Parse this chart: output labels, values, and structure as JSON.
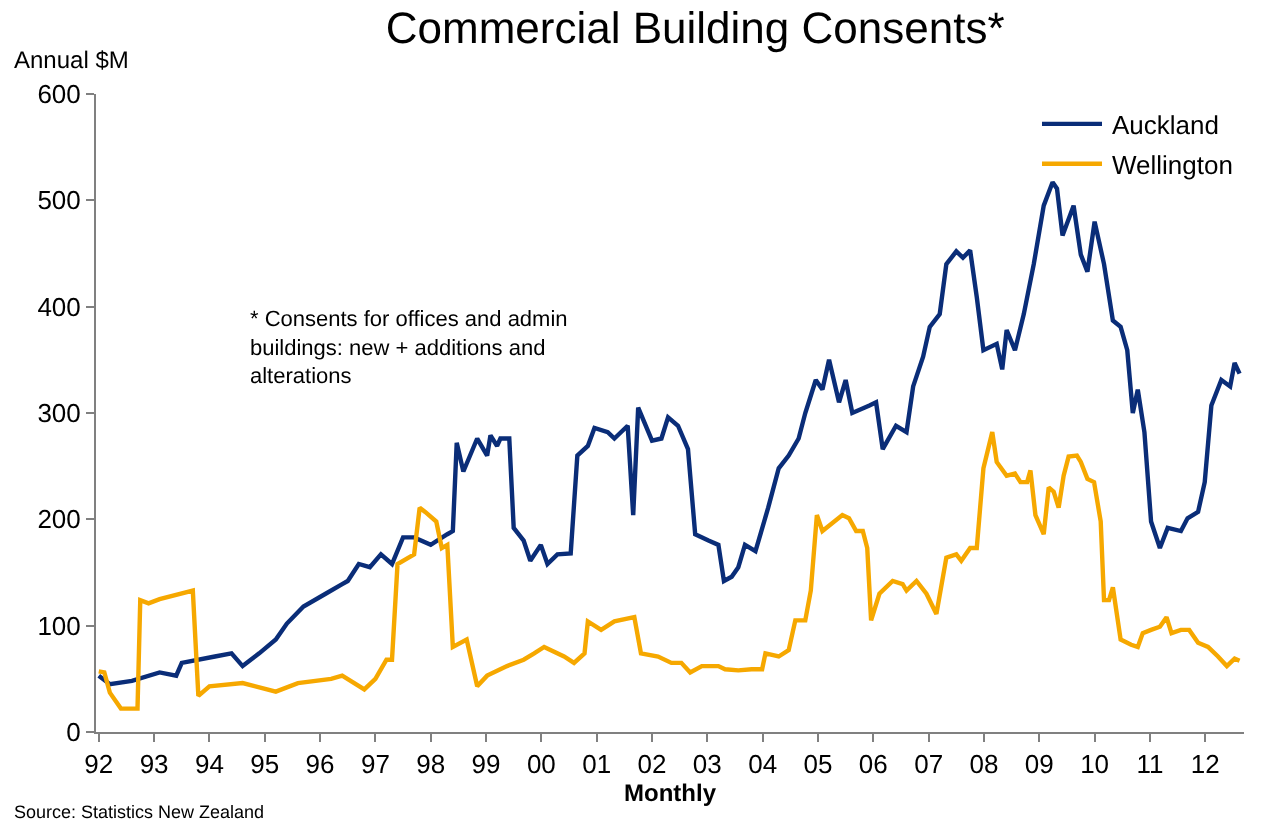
{
  "chart_data": {
    "type": "line",
    "title": "Commercial Building Consents*",
    "ylabel": "Annual $M",
    "xlabel": "Monthly",
    "annotations": [
      "* Consents for offices and admin\nbuildings: new + additions and\nalterations",
      "Source: Statistics New Zealand"
    ],
    "xlim": [
      1991.95,
      2012.7
    ],
    "xticks": [
      {
        "value": 1992,
        "label": "92"
      },
      {
        "value": 1993,
        "label": "93"
      },
      {
        "value": 1994,
        "label": "94"
      },
      {
        "value": 1995,
        "label": "95"
      },
      {
        "value": 1996,
        "label": "96"
      },
      {
        "value": 1997,
        "label": "97"
      },
      {
        "value": 1998,
        "label": "98"
      },
      {
        "value": 1999,
        "label": "99"
      },
      {
        "value": 2000,
        "label": "00"
      },
      {
        "value": 2001,
        "label": "01"
      },
      {
        "value": 2002,
        "label": "02"
      },
      {
        "value": 2003,
        "label": "03"
      },
      {
        "value": 2004,
        "label": "04"
      },
      {
        "value": 2005,
        "label": "05"
      },
      {
        "value": 2006,
        "label": "06"
      },
      {
        "value": 2007,
        "label": "07"
      },
      {
        "value": 2008,
        "label": "08"
      },
      {
        "value": 2009,
        "label": "09"
      },
      {
        "value": 2010,
        "label": "10"
      },
      {
        "value": 2011,
        "label": "11"
      },
      {
        "value": 2012,
        "label": "12"
      }
    ],
    "ylim": [
      0,
      600
    ],
    "yticks": [
      0,
      100,
      200,
      300,
      400,
      500,
      600
    ],
    "legend": "top right",
    "marker": "none",
    "line_style": "solid",
    "series": [
      {
        "name": "Auckland",
        "color": "#0a2d78",
        "x": [
          1992.0,
          1992.2,
          1992.6,
          1993.1,
          1993.4,
          1993.5,
          1994.1,
          1994.4,
          1994.6,
          1994.9,
          1995.2,
          1995.4,
          1995.7,
          1996.1,
          1996.4,
          1996.5,
          1996.7,
          1996.9,
          1997.1,
          1997.3,
          1997.5,
          1997.7,
          1998.0,
          1998.3,
          1998.4,
          1998.47,
          1998.59,
          1998.84,
          1999.02,
          1999.08,
          1999.2,
          1999.26,
          1999.42,
          1999.5,
          1999.68,
          1999.8,
          1999.99,
          2000.11,
          2000.29,
          2000.53,
          2000.65,
          2000.84,
          2000.96,
          2001.2,
          2001.32,
          2001.56,
          2001.66,
          2001.75,
          2002.0,
          2002.17,
          2002.29,
          2002.47,
          2002.65,
          2002.78,
          2003.02,
          2003.2,
          2003.3,
          2003.44,
          2003.56,
          2003.68,
          2003.87,
          2004.1,
          2004.29,
          2004.47,
          2004.65,
          2004.77,
          2004.96,
          2005.08,
          2005.2,
          2005.38,
          2005.5,
          2005.62,
          2005.93,
          2006.05,
          2006.17,
          2006.41,
          2006.6,
          2006.72,
          2006.9,
          2007.02,
          2007.2,
          2007.32,
          2007.5,
          2007.62,
          2007.75,
          2007.87,
          2007.99,
          2008.23,
          2008.33,
          2008.41,
          2008.56,
          2008.72,
          2008.9,
          2009.08,
          2009.24,
          2009.32,
          2009.42,
          2009.62,
          2009.75,
          2009.87,
          2010.0,
          2010.17,
          2010.33,
          2010.47,
          2010.59,
          2010.69,
          2010.78,
          2010.9,
          2011.02,
          2011.18,
          2011.32,
          2011.56,
          2011.68,
          2011.87,
          2011.99,
          2012.11,
          2012.29,
          2012.45,
          2012.53,
          2012.62
        ],
        "values": [
          53,
          45,
          48,
          56,
          53,
          65,
          71,
          74,
          62,
          74,
          87,
          102,
          118,
          130,
          139,
          142,
          158,
          155,
          167,
          158,
          183,
          183,
          176,
          186,
          189,
          272,
          245,
          276,
          260,
          279,
          269,
          276,
          276,
          192,
          180,
          161,
          176,
          158,
          167,
          168,
          260,
          269,
          286,
          282,
          276,
          288,
          204,
          305,
          274,
          276,
          296,
          288,
          266,
          186,
          180,
          176,
          142,
          146,
          155,
          176,
          170,
          211,
          248,
          260,
          276,
          300,
          331,
          322,
          350,
          310,
          331,
          300,
          307,
          310,
          266,
          288,
          282,
          325,
          353,
          381,
          393,
          440,
          452,
          446,
          453,
          409,
          359,
          365,
          341,
          378,
          359,
          393,
          440,
          495,
          517,
          511,
          467,
          495,
          449,
          433,
          480,
          440,
          387,
          381,
          359,
          300,
          322,
          282,
          198,
          173,
          192,
          189,
          201,
          207,
          235,
          307,
          331,
          325,
          347,
          337
        ]
      },
      {
        "name": "Wellington",
        "color": "#f6a800",
        "x": [
          1992.0,
          1992.1,
          1992.2,
          1992.4,
          1992.7,
          1992.75,
          1992.9,
          1993.1,
          1993.7,
          1993.8,
          1994.0,
          1994.6,
          1995.2,
          1995.6,
          1996.2,
          1996.4,
          1996.8,
          1997.0,
          1997.2,
          1997.3,
          1997.4,
          1997.7,
          1997.8,
          1997.9,
          1998.1,
          1998.2,
          1998.3,
          1998.4,
          1998.65,
          1998.84,
          1999.02,
          1999.38,
          1999.68,
          1999.87,
          2000.05,
          2000.41,
          2000.59,
          2000.78,
          2000.84,
          2001.08,
          2001.32,
          2001.68,
          2001.8,
          2002.11,
          2002.35,
          2002.53,
          2002.69,
          2002.9,
          2003.2,
          2003.32,
          2003.56,
          2003.8,
          2003.99,
          2004.05,
          2004.29,
          2004.47,
          2004.59,
          2004.77,
          2004.87,
          2004.98,
          2005.08,
          2005.44,
          2005.56,
          2005.69,
          2005.81,
          2005.89,
          2005.96,
          2006.11,
          2006.35,
          2006.53,
          2006.6,
          2006.78,
          2006.96,
          2007.14,
          2007.32,
          2007.5,
          2007.59,
          2007.75,
          2007.87,
          2007.99,
          2008.15,
          2008.23,
          2008.41,
          2008.56,
          2008.66,
          2008.78,
          2008.84,
          2008.93,
          2009.08,
          2009.17,
          2009.26,
          2009.35,
          2009.44,
          2009.53,
          2009.68,
          2009.75,
          2009.87,
          2009.99,
          2010.11,
          2010.17,
          2010.26,
          2010.33,
          2010.47,
          2010.66,
          2010.78,
          2010.87,
          2011.02,
          2011.18,
          2011.3,
          2011.39,
          2011.56,
          2011.71,
          2011.87,
          2012.05,
          2012.23,
          2012.39,
          2012.53,
          2012.62
        ],
        "values": [
          57,
          56,
          37,
          22,
          22,
          124,
          121,
          125,
          133,
          34,
          43,
          46,
          38,
          46,
          50,
          53,
          40,
          50,
          68,
          68,
          158,
          167,
          211,
          207,
          198,
          173,
          176,
          80,
          87,
          43,
          53,
          62,
          68,
          74,
          80,
          71,
          65,
          74,
          104,
          96,
          104,
          108,
          74,
          71,
          65,
          65,
          56,
          62,
          62,
          59,
          58,
          59,
          59,
          74,
          71,
          77,
          105,
          105,
          133,
          204,
          189,
          204,
          201,
          189,
          189,
          173,
          105,
          130,
          142,
          139,
          133,
          142,
          130,
          111,
          164,
          167,
          161,
          173,
          173,
          248,
          282,
          254,
          241,
          243,
          235,
          235,
          246,
          204,
          186,
          230,
          226,
          211,
          241,
          259,
          260,
          254,
          238,
          235,
          198,
          124,
          124,
          136,
          87,
          82,
          80,
          93,
          96,
          99,
          108,
          93,
          96,
          96,
          84,
          80,
          71,
          62,
          69,
          67
        ]
      }
    ]
  }
}
